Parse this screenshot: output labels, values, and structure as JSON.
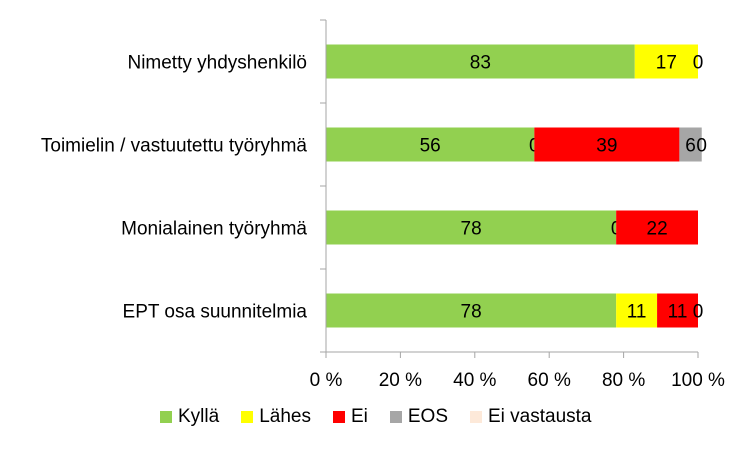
{
  "colors": {
    "axis": "#a6a6a6",
    "series": [
      "#92d050",
      "#ffff00",
      "#ff0000",
      "#a6a6a6",
      "#fde9d9"
    ]
  },
  "chart_data": {
    "type": "bar",
    "orientation": "horizontal",
    "stacked": true,
    "percent": true,
    "categories": [
      "Nimetty yhdyshenkilö",
      "Toimielin / vastuutettu työryhmä",
      "Monialainen työryhmä",
      "EPT osa suunnitelmia"
    ],
    "series": [
      {
        "name": "Kyllä",
        "values": [
          83,
          56,
          78,
          78
        ],
        "labels": [
          "83",
          "56",
          "78",
          "78"
        ]
      },
      {
        "name": "Lähes",
        "values": [
          17,
          0,
          0,
          11
        ],
        "labels": [
          "17",
          "0",
          "0",
          "11"
        ]
      },
      {
        "name": "Ei",
        "values": [
          0,
          39,
          22,
          11
        ],
        "labels": [
          "0",
          "39",
          "22",
          "11"
        ]
      },
      {
        "name": "EOS",
        "values": [
          0,
          6,
          0,
          0
        ],
        "labels": [
          "",
          "6",
          "",
          ""
        ]
      },
      {
        "name": "Ei vastausta",
        "values": [
          0,
          0,
          0,
          0
        ],
        "labels": [
          "",
          "0",
          "",
          "0"
        ]
      }
    ],
    "xlim": [
      0,
      100
    ],
    "xticks": [
      "0 %",
      "20 %",
      "40 %",
      "60 %",
      "80 %",
      "100 %"
    ],
    "grid": false,
    "legend_position": "bottom"
  }
}
